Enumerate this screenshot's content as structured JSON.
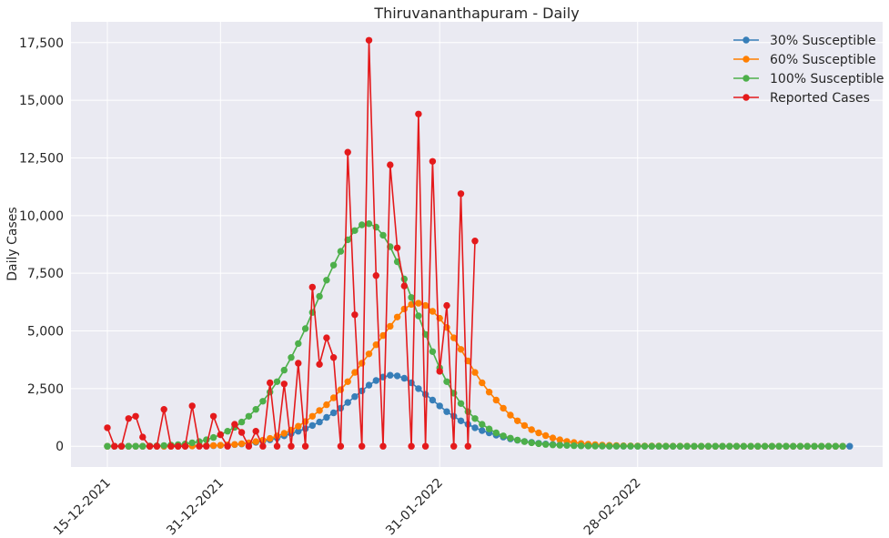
{
  "chart_data": {
    "type": "line",
    "title": "Thiruvananthapuram - Daily",
    "xlabel": "",
    "ylabel": "Daily Cases",
    "x_start": "15-12-2021",
    "x_tick_labels": [
      "15-12-2021",
      "31-12-2021",
      "31-01-2022",
      "28-02-2022"
    ],
    "y_ticks": [
      0,
      2500,
      5000,
      7500,
      10000,
      12500,
      15000,
      17500
    ],
    "y_tick_labels": [
      "0",
      "2,500",
      "5,000",
      "7,500",
      "10,000",
      "12,500",
      "15,000",
      "17,500"
    ],
    "ylim": [
      -900,
      18400
    ],
    "grid": true,
    "legend_position": "top-right",
    "series": [
      {
        "name": "30% Susceptible",
        "color": "#377eb8",
        "values": [
          0,
          0,
          0,
          0,
          0,
          0,
          0,
          0,
          0,
          0,
          0,
          5,
          10,
          15,
          20,
          25,
          35,
          50,
          70,
          100,
          130,
          170,
          220,
          280,
          360,
          450,
          550,
          650,
          760,
          900,
          1050,
          1250,
          1450,
          1650,
          1900,
          2150,
          2400,
          2650,
          2850,
          3000,
          3080,
          3050,
          2950,
          2750,
          2500,
          2250,
          2000,
          1750,
          1500,
          1300,
          1100,
          950,
          800,
          680,
          580,
          480,
          400,
          320,
          260,
          210,
          170,
          130,
          100,
          80,
          60,
          45,
          35,
          25,
          20,
          15,
          10,
          8,
          6,
          5,
          4,
          3,
          2,
          2,
          1,
          1,
          1,
          1,
          1,
          0,
          0,
          0,
          0,
          0,
          0,
          0,
          0,
          0,
          0,
          0,
          0,
          0,
          0,
          0,
          0,
          0,
          0,
          0,
          0,
          0,
          0,
          0
        ]
      },
      {
        "name": "60% Susceptible",
        "color": "#ff7f00",
        "values": [
          0,
          0,
          0,
          0,
          0,
          0,
          0,
          0,
          0,
          0,
          0,
          5,
          10,
          15,
          20,
          30,
          45,
          60,
          80,
          110,
          150,
          200,
          260,
          340,
          440,
          560,
          700,
          870,
          1070,
          1300,
          1550,
          1800,
          2100,
          2450,
          2800,
          3200,
          3600,
          4000,
          4400,
          4800,
          5200,
          5600,
          5950,
          6150,
          6200,
          6100,
          5850,
          5550,
          5150,
          4700,
          4200,
          3700,
          3200,
          2750,
          2350,
          2000,
          1650,
          1350,
          1100,
          900,
          720,
          580,
          460,
          360,
          280,
          210,
          160,
          120,
          90,
          70,
          50,
          40,
          30,
          20,
          15,
          12,
          10,
          8,
          6,
          5,
          4,
          3,
          2,
          1,
          1,
          1,
          0,
          0,
          0,
          0,
          0,
          0,
          0,
          0,
          0,
          0,
          0,
          0,
          0,
          0,
          0,
          0,
          0,
          0,
          0
        ]
      },
      {
        "name": "100% Susceptible",
        "color": "#4daf4a",
        "values": [
          0,
          0,
          0,
          0,
          0,
          0,
          10,
          20,
          30,
          50,
          70,
          100,
          150,
          200,
          280,
          380,
          500,
          650,
          820,
          1050,
          1300,
          1600,
          1950,
          2350,
          2800,
          3300,
          3850,
          4450,
          5100,
          5800,
          6500,
          7200,
          7850,
          8450,
          8950,
          9350,
          9600,
          9650,
          9500,
          9150,
          8650,
          8000,
          7250,
          6450,
          5650,
          4850,
          4100,
          3400,
          2800,
          2300,
          1850,
          1500,
          1200,
          950,
          750,
          580,
          450,
          350,
          270,
          200,
          150,
          110,
          80,
          60,
          45,
          35,
          25,
          18,
          12,
          9,
          7,
          5,
          4,
          3,
          2,
          1,
          1,
          1,
          0,
          0,
          0,
          0,
          0,
          0,
          0,
          0,
          0,
          0,
          0,
          0,
          0,
          0,
          0,
          0,
          0,
          0,
          0,
          0,
          0,
          0,
          0,
          0,
          0,
          0,
          0
        ]
      },
      {
        "name": "Reported Cases",
        "color": "#e41a1c",
        "values": [
          800,
          0,
          0,
          1200,
          1300,
          400,
          0,
          0,
          1600,
          0,
          0,
          0,
          1750,
          0,
          0,
          1300,
          500,
          0,
          950,
          600,
          0,
          650,
          0,
          2750,
          0,
          2700,
          0,
          3600,
          0,
          6900,
          3550,
          4700,
          3850,
          0,
          12750,
          5700,
          0,
          17600,
          7400,
          0,
          12200,
          8600,
          6950,
          0,
          14400,
          0,
          12350,
          3250,
          6100,
          0,
          10950,
          0,
          8900
        ]
      }
    ]
  }
}
